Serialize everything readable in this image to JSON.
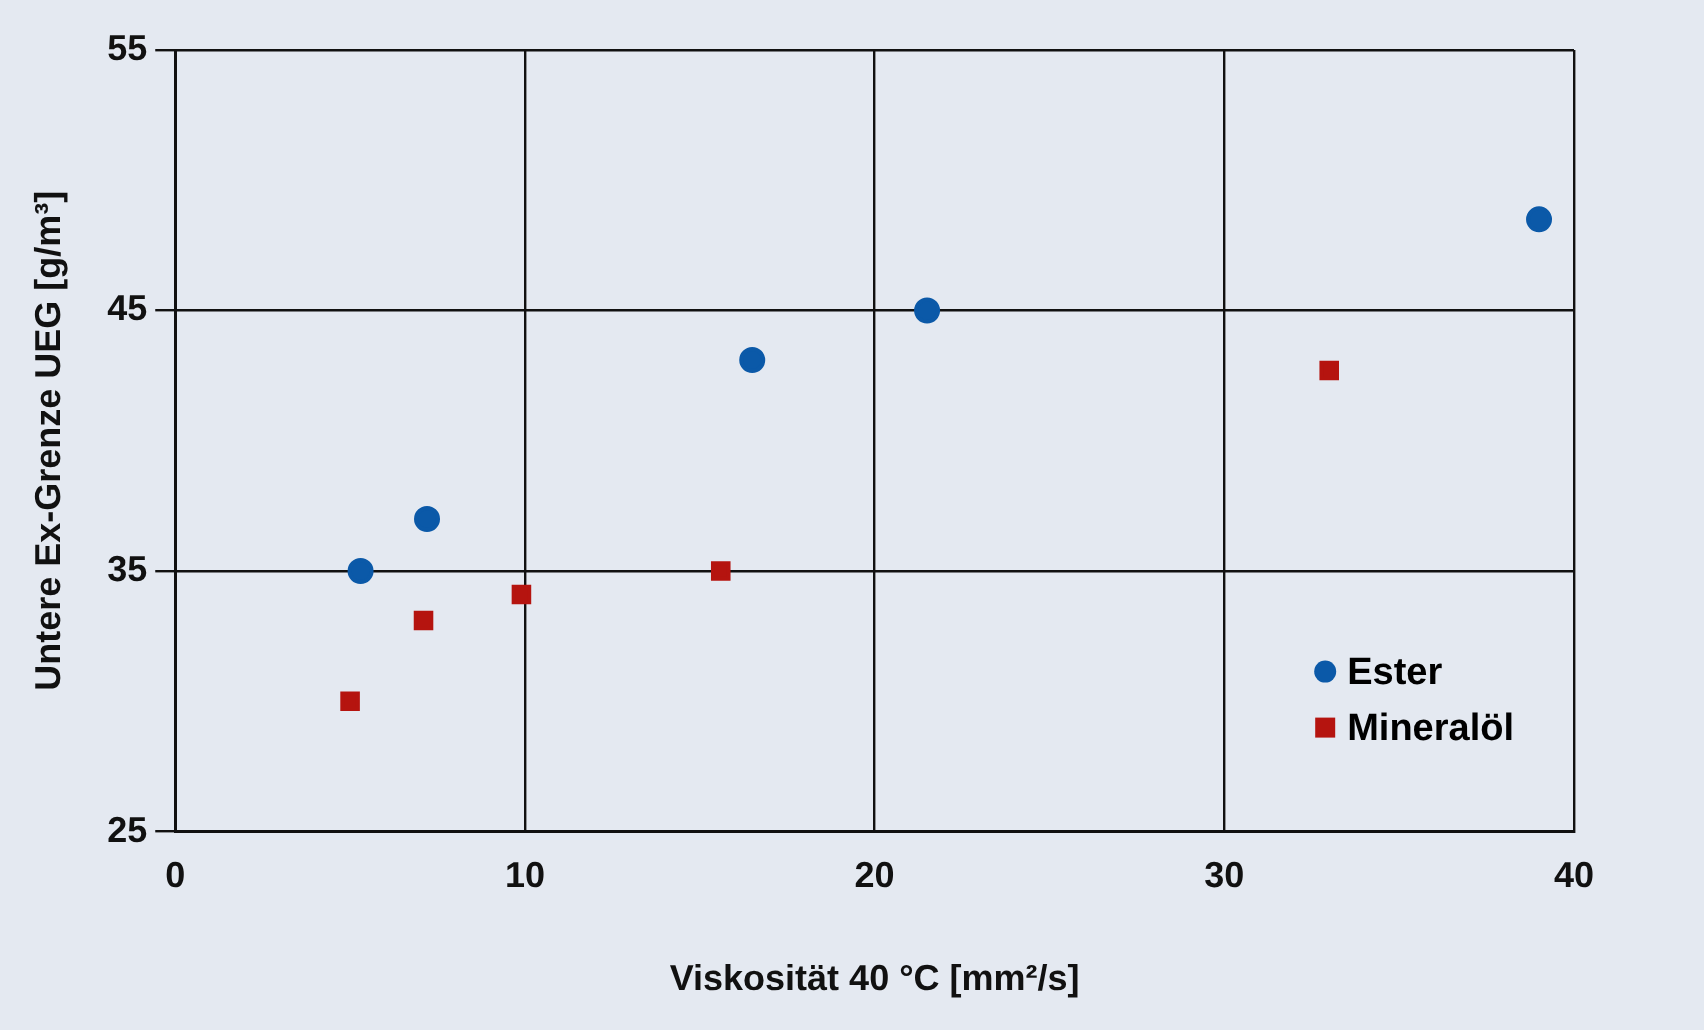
{
  "chart_data": {
    "type": "scatter",
    "xlabel": "Viskosität 40 °C [mm²/s]",
    "ylabel": "Untere Ex-Grenze UEG [g/m³]",
    "xlim": [
      0,
      40
    ],
    "xticks": [
      0,
      10,
      20,
      30,
      40
    ],
    "ylim": [
      25,
      55
    ],
    "yticks": [
      25,
      35,
      45,
      55
    ],
    "grid": true,
    "legend": "bottom right",
    "series": [
      {
        "name": "Ester",
        "color": "#0b59a8",
        "marker": "circle",
        "x": [
          5.3,
          7.2,
          16.5,
          21.5,
          39.0
        ],
        "values": [
          35.0,
          37.0,
          43.1,
          45.0,
          48.5
        ]
      },
      {
        "name": "Mineralöl",
        "color": "#b5140f",
        "marker": "square",
        "x": [
          5.0,
          7.1,
          9.9,
          15.6,
          33.0
        ],
        "values": [
          30.0,
          33.1,
          34.1,
          35.0,
          42.7
        ]
      }
    ]
  }
}
